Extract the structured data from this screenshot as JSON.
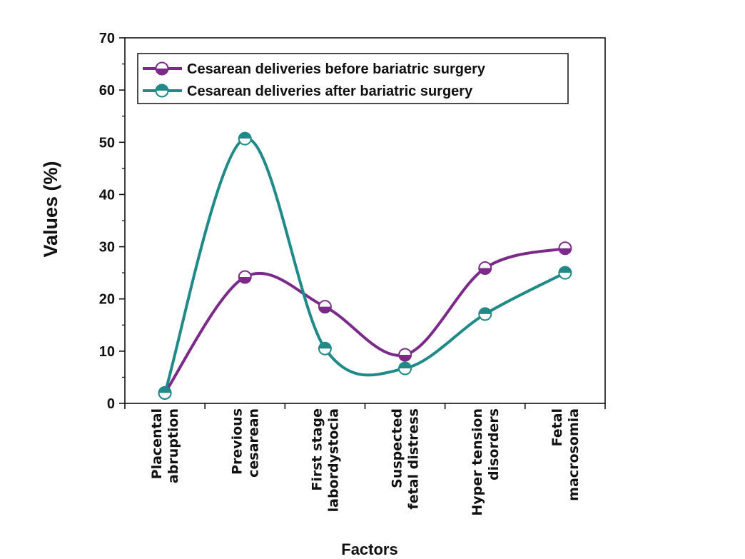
{
  "chart_data": {
    "type": "line",
    "categories": [
      [
        "Placental",
        "abruption"
      ],
      [
        "Previous",
        "cesarean"
      ],
      [
        "First stage",
        "labordystocia"
      ],
      [
        "Suspected",
        "fetal distress"
      ],
      [
        "Hyper tension",
        "disorders"
      ],
      [
        "Fetal",
        "macrosomia"
      ]
    ],
    "series": [
      {
        "name": "Cesarean deliveries before bariatric surgery",
        "color": "#7b2a8a",
        "values": [
          2.0,
          24.2,
          18.5,
          9.3,
          25.9,
          29.7
        ]
      },
      {
        "name": "Cesarean deliveries after bariatric surgery",
        "color": "#1f8a87",
        "values": [
          2.0,
          50.7,
          10.5,
          6.7,
          17.1,
          25.0
        ]
      }
    ],
    "title": "",
    "xlabel": "Factors",
    "ylabel": "Values (%)",
    "ylim": [
      0,
      70
    ],
    "yticks": [
      0,
      10,
      20,
      30,
      40,
      50,
      60,
      70
    ],
    "smooth": true,
    "legend": "top-left"
  }
}
